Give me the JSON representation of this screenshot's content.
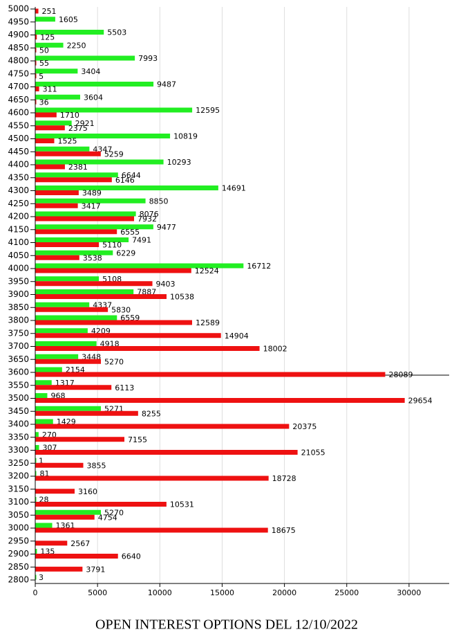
{
  "chart_data": {
    "type": "hbar",
    "title": "OPEN INTEREST OPTIONS DEL 12/10/2022",
    "categories": [
      "5000",
      "4950",
      "4900",
      "4850",
      "4800",
      "4750",
      "4700",
      "4650",
      "4600",
      "4550",
      "4500",
      "4450",
      "4400",
      "4350",
      "4300",
      "4250",
      "4200",
      "4150",
      "4100",
      "4050",
      "4000",
      "3950",
      "3900",
      "3850",
      "3800",
      "3750",
      "3700",
      "3650",
      "3600",
      "3550",
      "3500",
      "3450",
      "3400",
      "3350",
      "3300",
      "3250",
      "3200",
      "3150",
      "3100",
      "3050",
      "3000",
      "2950",
      "2900",
      "2850",
      "2800"
    ],
    "series": [
      {
        "color": "#22ee22",
        "values": [
          null,
          1605,
          5503,
          2250,
          7993,
          3404,
          9487,
          3604,
          12595,
          2921,
          10819,
          4347,
          10293,
          6644,
          14691,
          8850,
          8076,
          9477,
          7491,
          6229,
          16712,
          5108,
          7887,
          4337,
          6559,
          4209,
          4918,
          3448,
          2154,
          1317,
          968,
          5271,
          1429,
          270,
          307,
          1,
          81,
          null,
          28,
          5270,
          1361,
          null,
          135,
          null,
          3
        ]
      },
      {
        "color": "#ee1111",
        "values": [
          251,
          null,
          125,
          50,
          55,
          5,
          311,
          36,
          1710,
          2375,
          1525,
          5259,
          2381,
          6146,
          3489,
          3417,
          7932,
          6555,
          5110,
          3538,
          12524,
          9403,
          10538,
          5830,
          12589,
          14904,
          18002,
          5270,
          28089,
          6113,
          29654,
          8255,
          20375,
          7155,
          21055,
          3855,
          18728,
          3160,
          10531,
          4754,
          18675,
          2567,
          6640,
          3791,
          null
        ]
      }
    ],
    "xlim": [
      0,
      33000
    ],
    "xticks": [
      0,
      5000,
      10000,
      15000,
      20000,
      25000,
      30000
    ],
    "grid": true
  }
}
